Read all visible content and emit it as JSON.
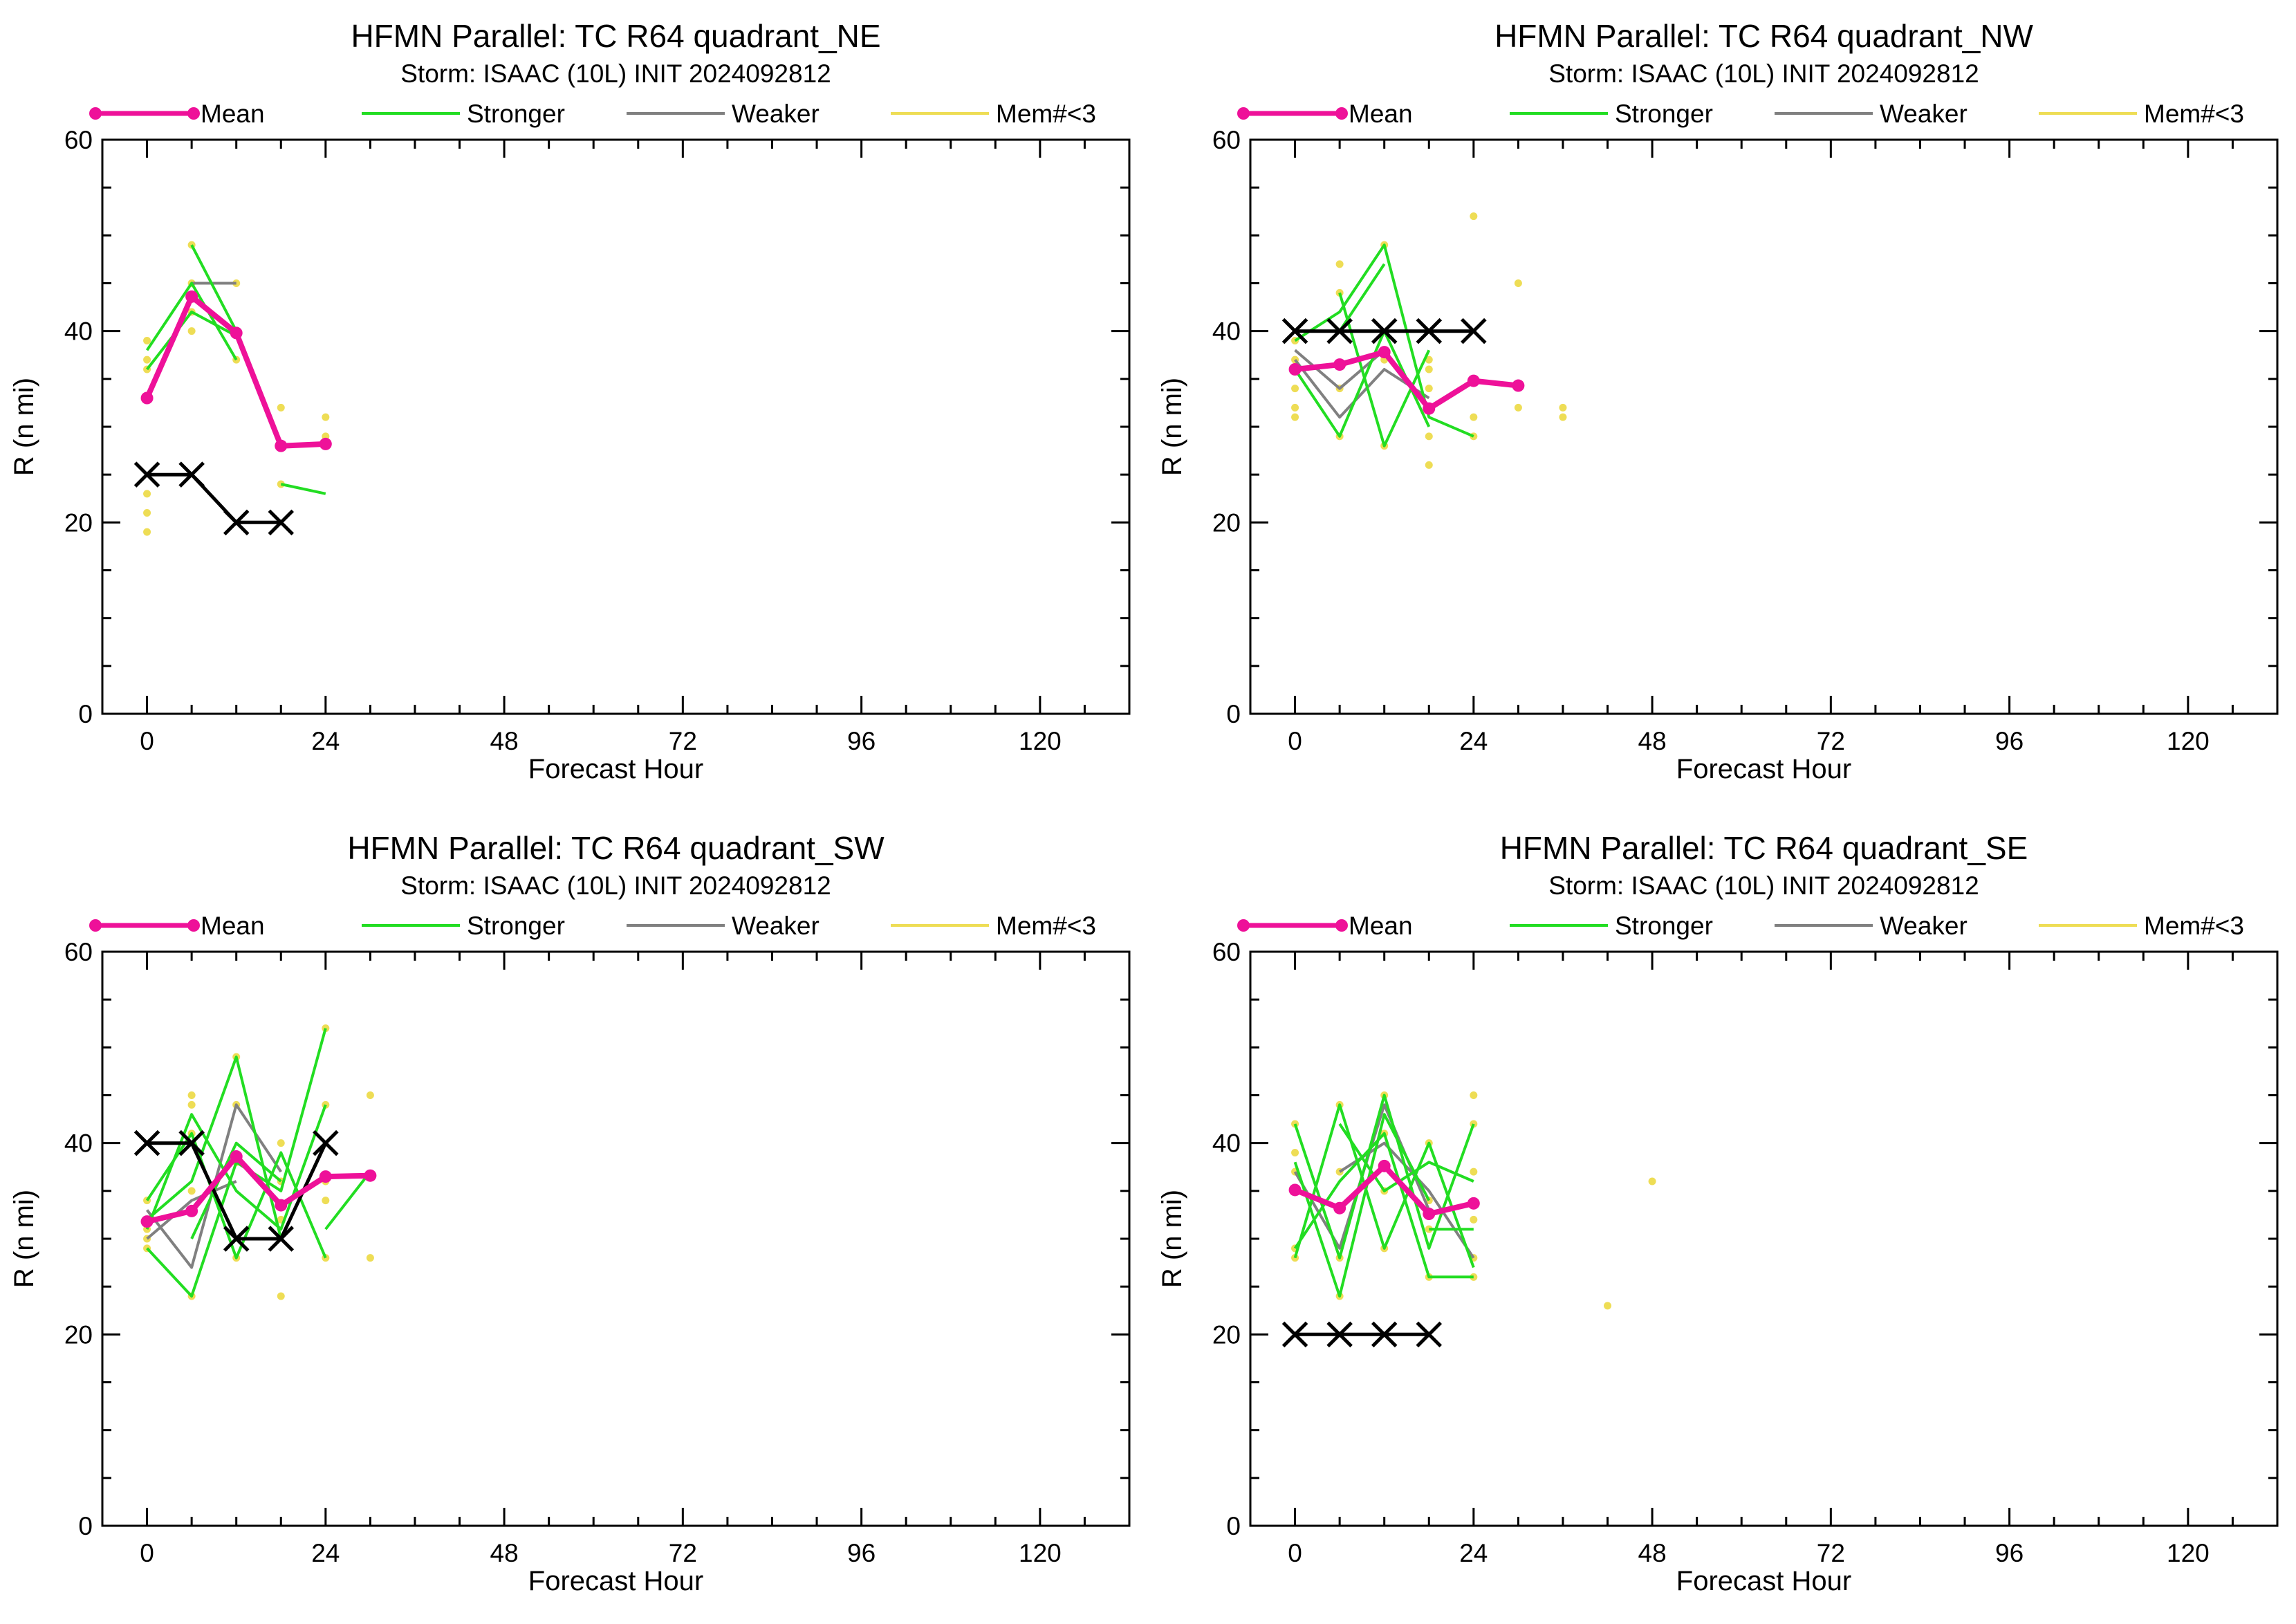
{
  "colors": {
    "mean": "#ee1199",
    "stronger": "#22dd22",
    "weaker": "#808080",
    "mem": "#eedd55",
    "best_track": "#000000"
  },
  "legend": [
    "Mean",
    "Stronger",
    "Weaker",
    "Mem#<3"
  ],
  "chart_data": [
    {
      "type": "line",
      "title": "HFMN Parallel: TC  R64 quadrant_NE",
      "subtitle": "Storm: ISAAC (10L) INIT 2024092812",
      "xlabel": "Forecast Hour",
      "ylabel": "R (n mi)",
      "xlim": [
        -6,
        132
      ],
      "ylim": [
        0,
        60
      ],
      "xticks": [
        0,
        24,
        48,
        72,
        96,
        120
      ],
      "yticks": [
        0,
        20,
        40,
        60
      ],
      "grid": false,
      "legend_position": "top",
      "mean": {
        "x": [
          0,
          6,
          12,
          18,
          24
        ],
        "y": [
          33,
          43.6,
          39.8,
          28,
          28.2
        ]
      },
      "best_track": {
        "x": [
          0,
          6,
          12,
          18
        ],
        "y": [
          25,
          25,
          20,
          20
        ]
      },
      "stronger": [
        {
          "x": [
            0,
            6,
            12
          ],
          "y": [
            36,
            42,
            39.5
          ]
        },
        {
          "x": [
            0,
            6,
            12
          ],
          "y": [
            38,
            45,
            37
          ]
        },
        {
          "x": [
            6,
            12
          ],
          "y": [
            49,
            40
          ]
        },
        {
          "x": [
            18,
            24
          ],
          "y": [
            24,
            23
          ]
        }
      ],
      "weaker": [
        {
          "x": [
            6,
            12
          ],
          "y": [
            45,
            45
          ]
        }
      ],
      "member_points": {
        "x": [
          0,
          0,
          0,
          0,
          0,
          0,
          6,
          6,
          6,
          6,
          12,
          12,
          12,
          18,
          18,
          24,
          24
        ],
        "y": [
          39,
          37,
          23,
          21,
          19,
          36,
          49,
          45,
          42,
          40,
          45,
          40,
          37,
          32,
          24,
          31,
          29
        ]
      }
    },
    {
      "type": "line",
      "title": "HFMN Parallel: TC  R64 quadrant_NW",
      "subtitle": "Storm: ISAAC (10L) INIT 2024092812",
      "xlabel": "Forecast Hour",
      "ylabel": "R (n mi)",
      "xlim": [
        -6,
        132
      ],
      "ylim": [
        0,
        60
      ],
      "xticks": [
        0,
        24,
        48,
        72,
        96,
        120
      ],
      "yticks": [
        0,
        20,
        40,
        60
      ],
      "grid": false,
      "legend_position": "top",
      "mean": {
        "x": [
          0,
          6,
          12,
          18,
          24,
          30
        ],
        "y": [
          36,
          36.5,
          37.8,
          31.9,
          34.8,
          34.3
        ]
      },
      "best_track": {
        "x": [
          0,
          6,
          12,
          18,
          24
        ],
        "y": [
          40,
          40,
          40,
          40,
          40
        ]
      },
      "stronger": [
        {
          "x": [
            0,
            6,
            12,
            18,
            24
          ],
          "y": [
            39,
            42,
            49,
            31,
            29
          ]
        },
        {
          "x": [
            0,
            6,
            12
          ],
          "y": [
            40,
            40,
            47
          ]
        },
        {
          "x": [
            0,
            6,
            12,
            18
          ],
          "y": [
            36,
            29,
            40,
            30
          ]
        },
        {
          "x": [
            6,
            12,
            18
          ],
          "y": [
            44,
            28,
            38
          ]
        }
      ],
      "weaker": [
        {
          "x": [
            0,
            6,
            12,
            18
          ],
          "y": [
            37,
            31,
            36,
            33
          ]
        },
        {
          "x": [
            0,
            6,
            12
          ],
          "y": [
            38,
            34,
            38
          ]
        }
      ],
      "member_points": {
        "x": [
          0,
          0,
          0,
          0,
          0,
          0,
          6,
          6,
          6,
          6,
          12,
          12,
          12,
          18,
          18,
          18,
          18,
          18,
          24,
          24,
          24,
          30,
          30,
          36,
          36
        ],
        "y": [
          39,
          37,
          34,
          32,
          31,
          36,
          47,
          44,
          34,
          29,
          49,
          37,
          28,
          37,
          36,
          34,
          29,
          26,
          52,
          31,
          29,
          45,
          32,
          32,
          31
        ]
      }
    },
    {
      "type": "line",
      "title": "HFMN Parallel: TC  R64 quadrant_SW",
      "subtitle": "Storm: ISAAC (10L) INIT 2024092812",
      "xlabel": "Forecast Hour",
      "ylabel": "R (n mi)",
      "xlim": [
        -6,
        132
      ],
      "ylim": [
        0,
        60
      ],
      "xticks": [
        0,
        24,
        48,
        72,
        96,
        120
      ],
      "yticks": [
        0,
        20,
        40,
        60
      ],
      "grid": false,
      "legend_position": "top",
      "mean": {
        "x": [
          0,
          6,
          12,
          18,
          24,
          30
        ],
        "y": [
          31.8,
          32.9,
          38.6,
          33.5,
          36.5,
          36.6
        ]
      },
      "best_track": {
        "x": [
          0,
          6,
          12,
          18,
          24
        ],
        "y": [
          40,
          40,
          30,
          30,
          40
        ]
      },
      "stronger": [
        {
          "x": [
            0,
            6,
            12,
            18,
            24
          ],
          "y": [
            29,
            24,
            38,
            35,
            52
          ]
        },
        {
          "x": [
            0,
            6,
            12,
            18,
            24
          ],
          "y": [
            34,
            41,
            28,
            39,
            28
          ]
        },
        {
          "x": [
            0,
            6,
            12,
            18
          ],
          "y": [
            32,
            36,
            49,
            30
          ]
        },
        {
          "x": [
            0,
            6,
            12,
            18,
            24
          ],
          "y": [
            31,
            43,
            35,
            31,
            44
          ]
        },
        {
          "x": [
            6,
            12,
            18
          ],
          "y": [
            30,
            40,
            36
          ]
        },
        {
          "x": [
            24,
            30
          ],
          "y": [
            31,
            37
          ]
        }
      ],
      "weaker": [
        {
          "x": [
            0,
            6,
            12,
            18
          ],
          "y": [
            33,
            27,
            44,
            37
          ]
        },
        {
          "x": [
            0,
            6,
            12
          ],
          "y": [
            30,
            34,
            36
          ]
        }
      ],
      "member_points": {
        "x": [
          0,
          0,
          0,
          0,
          0,
          6,
          6,
          6,
          6,
          6,
          12,
          12,
          12,
          12,
          18,
          18,
          18,
          18,
          24,
          24,
          24,
          24,
          24,
          30,
          30
        ],
        "y": [
          34,
          32,
          31,
          30,
          29,
          45,
          44,
          41,
          35,
          24,
          49,
          44,
          38,
          28,
          40,
          36,
          32,
          24,
          52,
          44,
          36,
          34,
          28,
          45,
          28
        ]
      }
    },
    {
      "type": "line",
      "title": "HFMN Parallel: TC  R64 quadrant_SE",
      "subtitle": "Storm: ISAAC (10L) INIT 2024092812",
      "xlabel": "Forecast Hour",
      "ylabel": "R (n mi)",
      "xlim": [
        -6,
        132
      ],
      "ylim": [
        0,
        60
      ],
      "xticks": [
        0,
        24,
        48,
        72,
        96,
        120
      ],
      "yticks": [
        0,
        20,
        40,
        60
      ],
      "grid": false,
      "legend_position": "top",
      "mean": {
        "x": [
          0,
          6,
          12,
          18,
          24
        ],
        "y": [
          35.1,
          33.2,
          37.6,
          32.6,
          33.7
        ]
      },
      "best_track": {
        "x": [
          0,
          6,
          12,
          18
        ],
        "y": [
          20,
          20,
          20,
          20
        ]
      },
      "stronger": [
        {
          "x": [
            0,
            6,
            12,
            18,
            24
          ],
          "y": [
            42,
            28,
            45,
            29,
            42
          ]
        },
        {
          "x": [
            0,
            6,
            12,
            18,
            24
          ],
          "y": [
            28,
            44,
            29,
            40,
            27
          ]
        },
        {
          "x": [
            0,
            6,
            12,
            18,
            24
          ],
          "y": [
            29,
            36,
            41,
            26,
            26
          ]
        },
        {
          "x": [
            0,
            6,
            12,
            18
          ],
          "y": [
            38,
            24,
            43,
            34
          ]
        },
        {
          "x": [
            6,
            12,
            18,
            24
          ],
          "y": [
            42,
            35,
            38,
            36
          ]
        },
        {
          "x": [
            18,
            24
          ],
          "y": [
            31,
            31
          ]
        }
      ],
      "weaker": [
        {
          "x": [
            0,
            6,
            12,
            18
          ],
          "y": [
            37,
            29,
            44,
            33
          ]
        },
        {
          "x": [
            6,
            12,
            18,
            24
          ],
          "y": [
            37,
            40,
            35,
            28
          ]
        }
      ],
      "member_points": {
        "x": [
          0,
          0,
          0,
          0,
          0,
          6,
          6,
          6,
          6,
          12,
          12,
          12,
          12,
          18,
          18,
          18,
          18,
          24,
          24,
          24,
          24,
          24,
          24,
          42,
          48
        ],
        "y": [
          42,
          39,
          37,
          29,
          28,
          44,
          37,
          28,
          24,
          45,
          41,
          35,
          29,
          40,
          34,
          31,
          26,
          45,
          42,
          37,
          32,
          28,
          26,
          23,
          36
        ]
      }
    }
  ]
}
